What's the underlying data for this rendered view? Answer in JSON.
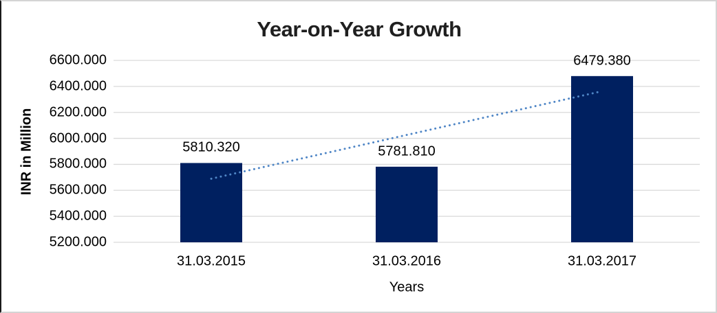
{
  "chart_data": {
    "type": "bar",
    "title": "Year-on-Year Growth",
    "xlabel": "Years",
    "ylabel": "INR in Million",
    "categories": [
      "31.03.2015",
      "31.03.2016",
      "31.03.2017"
    ],
    "values": [
      5810.32,
      5781.81,
      6479.38
    ],
    "data_labels": [
      "5810.320",
      "5781.810",
      "6479.380"
    ],
    "y_ticks": [
      "6600.000",
      "6400.000",
      "6200.000",
      "6000.000",
      "5800.000",
      "5600.000",
      "5400.000",
      "5200.000"
    ],
    "ylim": [
      5200,
      6600
    ],
    "y_tick_step": 200,
    "grid": true,
    "legend": "none",
    "bar_color": "#002060",
    "gridline_color": "#d9d9d9",
    "trendline": {
      "type": "linear",
      "style": "dotted",
      "color": "#4f86c6",
      "start_value": 5689.3,
      "end_value": 6358.4
    }
  }
}
